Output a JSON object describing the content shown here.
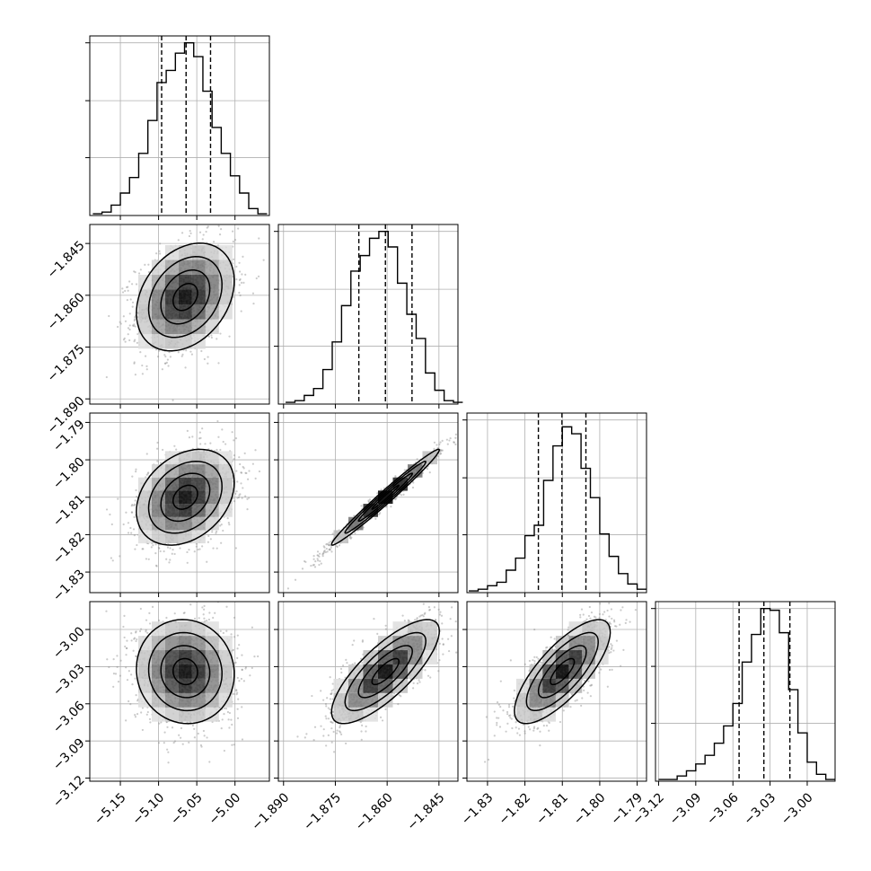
{
  "chart_data": {
    "type": "corner",
    "parameters": [
      {
        "ticks": [
          -5.15,
          -5.1,
          -5.05,
          -5.0
        ],
        "tick_labels": [
          "−5.15",
          "−5.10",
          "−5.05",
          "−5.00"
        ],
        "range": [
          -5.19,
          -4.955
        ]
      },
      {
        "ticks": [
          -1.89,
          -1.875,
          -1.86,
          -1.845
        ],
        "tick_labels": [
          "−1.890",
          "−1.875",
          "−1.860",
          "−1.845"
        ],
        "range": [
          -1.8915,
          -1.8395
        ]
      },
      {
        "ticks": [
          -1.83,
          -1.82,
          -1.81,
          -1.8,
          -1.79
        ],
        "tick_labels": [
          "−1.83",
          "−1.82",
          "−1.81",
          "−1.80",
          "−1.79"
        ],
        "range": [
          -1.8355,
          -1.7875
        ]
      },
      {
        "ticks": [
          -3.12,
          -3.09,
          -3.06,
          -3.03,
          -3.0
        ],
        "tick_labels": [
          "−3.12",
          "−3.09",
          "−3.06",
          "−3.03",
          "−3.00"
        ],
        "range": [
          -3.1225,
          -2.9775
        ]
      }
    ],
    "histograms": [
      {
        "quantiles": [
          -5.096,
          -5.064,
          -5.032
        ],
        "edges": [
          -5.186,
          -5.174,
          -5.162,
          -5.15,
          -5.138,
          -5.126,
          -5.114,
          -5.102,
          -5.09,
          -5.078,
          -5.066,
          -5.054,
          -5.042,
          -5.03,
          -5.018,
          -5.006,
          -4.994,
          -4.982,
          -4.97,
          -4.958
        ],
        "counts": [
          0.01,
          0.02,
          0.06,
          0.13,
          0.22,
          0.36,
          0.55,
          0.77,
          0.84,
          0.94,
          1.0,
          0.92,
          0.72,
          0.51,
          0.36,
          0.23,
          0.13,
          0.04,
          0.01
        ]
      },
      {
        "quantiles": [
          -1.8682,
          -1.8605,
          -1.8528
        ],
        "edges": [
          -1.8894,
          -1.8867,
          -1.884,
          -1.8813,
          -1.8786,
          -1.8759,
          -1.8732,
          -1.8705,
          -1.8678,
          -1.8651,
          -1.8624,
          -1.8597,
          -1.857,
          -1.8543,
          -1.8516,
          -1.8489,
          -1.8462,
          -1.8435,
          -1.8408,
          -1.8381
        ],
        "counts": [
          0.01,
          0.02,
          0.05,
          0.09,
          0.2,
          0.36,
          0.57,
          0.77,
          0.86,
          0.96,
          1.0,
          0.91,
          0.7,
          0.52,
          0.38,
          0.18,
          0.08,
          0.02,
          0.01
        ]
      },
      {
        "quantiles": [
          -1.8164,
          -1.8101,
          -1.8037
        ],
        "edges": [
          -1.835,
          -1.8325,
          -1.83,
          -1.8275,
          -1.825,
          -1.8225,
          -1.82,
          -1.8175,
          -1.815,
          -1.8125,
          -1.81,
          -1.8075,
          -1.805,
          -1.8025,
          -1.8,
          -1.7975,
          -1.795,
          -1.7925,
          -1.79,
          -1.7875
        ],
        "counts": [
          0.01,
          0.02,
          0.04,
          0.06,
          0.13,
          0.2,
          0.33,
          0.39,
          0.65,
          0.85,
          0.96,
          0.92,
          0.72,
          0.55,
          0.34,
          0.21,
          0.11,
          0.05,
          0.02
        ]
      },
      {
        "quantiles": [
          -3.055,
          -3.035,
          -3.014
        ],
        "edges": [
          -3.12,
          -3.1125,
          -3.105,
          -3.0975,
          -3.09,
          -3.0825,
          -3.075,
          -3.0675,
          -3.06,
          -3.0525,
          -3.045,
          -3.0375,
          -3.03,
          -3.0225,
          -3.015,
          -3.0075,
          -3.0,
          -2.9925,
          -2.985,
          -2.9775
        ],
        "counts": [
          0.01,
          0.01,
          0.03,
          0.06,
          0.1,
          0.15,
          0.22,
          0.32,
          0.45,
          0.69,
          0.85,
          1.0,
          0.99,
          0.86,
          0.53,
          0.28,
          0.11,
          0.04,
          0.01
        ]
      }
    ],
    "pairs": [
      {
        "x": 0,
        "y": 1,
        "mean": [
          -5.065,
          -1.8605
        ],
        "sd": [
          0.032,
          0.0078
        ],
        "rho": 0.3
      },
      {
        "x": 0,
        "y": 2,
        "mean": [
          -5.065,
          -1.81
        ],
        "sd": [
          0.032,
          0.0064
        ],
        "rho": 0.3
      },
      {
        "x": 1,
        "y": 2,
        "mean": [
          -1.8605,
          -1.81
        ],
        "sd": [
          0.0078,
          0.0064
        ],
        "rho": 0.985
      },
      {
        "x": 0,
        "y": 3,
        "mean": [
          -5.065,
          -3.034
        ],
        "sd": [
          0.032,
          0.021
        ],
        "rho": -0.05
      },
      {
        "x": 1,
        "y": 3,
        "mean": [
          -1.8605,
          -3.034
        ],
        "sd": [
          0.0078,
          0.021
        ],
        "rho": 0.78
      },
      {
        "x": 2,
        "y": 3,
        "mean": [
          -1.81,
          -3.034
        ],
        "sd": [
          0.0064,
          0.021
        ],
        "rho": 0.76
      }
    ],
    "contour_levels_sigma": [
      0.5,
      1.0,
      1.5,
      2.0
    ],
    "grid": true,
    "colors": {
      "line": "#000000",
      "grid": "#b0b0b0",
      "points": "#8c8c8c"
    }
  }
}
